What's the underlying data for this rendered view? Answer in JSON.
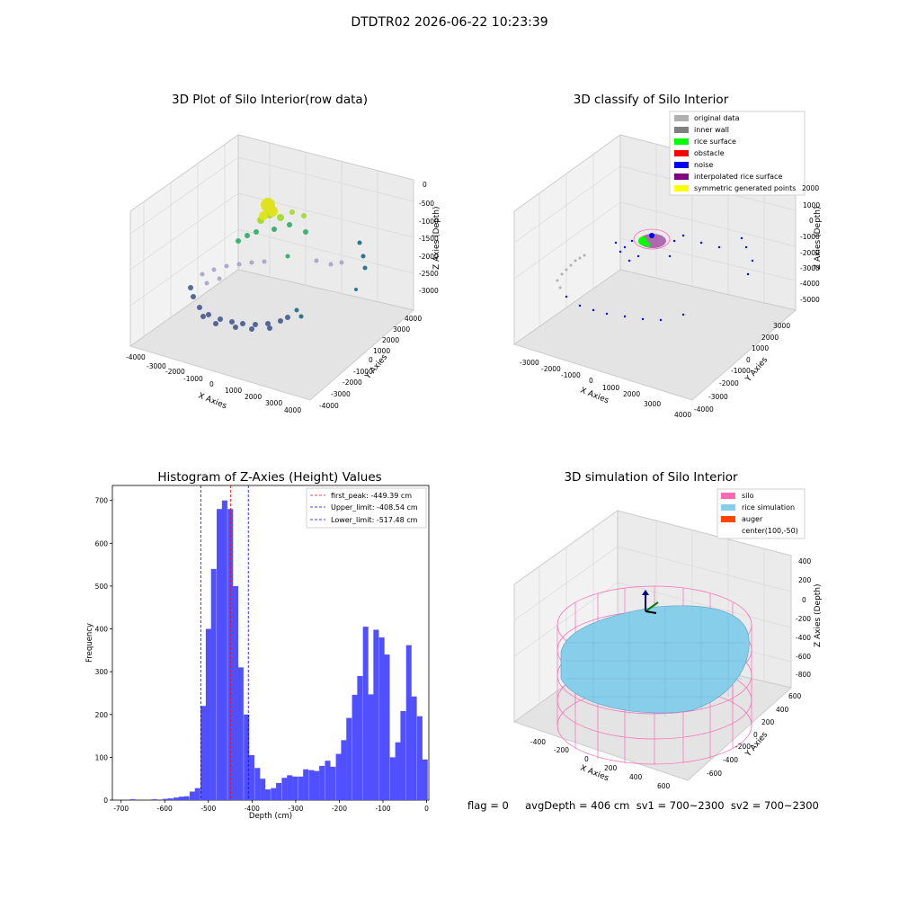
{
  "figure": {
    "suptitle": "DTDTR02 2026-06-22 10:23:39",
    "status_line": "flag = 0     avgDepth = 406 cm  sv1 = 700~2300  sv2 = 700~2300"
  },
  "chart_data": [
    {
      "type": "scatter",
      "projection": "3d",
      "title": "3D Plot of Silo Interior(row data)",
      "xlabel": "X Axies",
      "ylabel": "Y Axies",
      "zlabel": "Z Axies (Depth)",
      "xticks": [
        -4000,
        -3000,
        -2000,
        -1000,
        0,
        1000,
        2000,
        3000,
        4000
      ],
      "yticks": [
        -4000,
        -3000,
        -2000,
        -1000,
        0,
        1000,
        2000,
        3000,
        4000
      ],
      "zticks": [
        0,
        -500,
        -1000,
        -1500,
        -2000,
        -2500,
        -3000
      ],
      "colormap": "viridis"
    },
    {
      "type": "scatter",
      "projection": "3d",
      "title": "3D classify of Silo Interior",
      "xlabel": "X Axies",
      "ylabel": "Y Axies",
      "zlabel": "Z Axies (Depth)",
      "xticks": [
        -3000,
        -2000,
        -1000,
        0,
        1000,
        2000,
        3000,
        4000
      ],
      "yticks": [
        -4000,
        -3000,
        -2000,
        -1000,
        0,
        1000,
        2000,
        3000
      ],
      "zticks": [
        2000,
        1000,
        0,
        -1000,
        -2000,
        -3000,
        -4000,
        -5000
      ],
      "legend": [
        {
          "label": "original data",
          "color": "#b0b0b0"
        },
        {
          "label": "inner wall",
          "color": "#808080"
        },
        {
          "label": "rice surface",
          "color": "#00ff00"
        },
        {
          "label": "obstacle",
          "color": "#ff0000"
        },
        {
          "label": "noise",
          "color": "#0000ff"
        },
        {
          "label": "interpolated rice surface",
          "color": "#800080"
        },
        {
          "label": "symmetric generated points",
          "color": "#ffff00"
        }
      ]
    },
    {
      "type": "bar",
      "title": "Histogram of Z-Axies (Height) Values",
      "xlabel": "Depth (cm)",
      "ylabel": "Frequency",
      "xlim": [
        -720,
        5
      ],
      "ylim": [
        0,
        735
      ],
      "xticks": [
        -700,
        -600,
        -500,
        -400,
        -300,
        -200,
        -100,
        0
      ],
      "yticks": [
        0,
        100,
        200,
        300,
        400,
        500,
        600,
        700
      ],
      "bin_width": 12.4,
      "bar_color": "#5050ff",
      "bins": [
        [
          -680,
          2
        ],
        [
          -630,
          2
        ],
        [
          -605,
          3
        ],
        [
          -593,
          4
        ],
        [
          -580,
          6
        ],
        [
          -568,
          8
        ],
        [
          -556,
          9
        ],
        [
          -543,
          20
        ],
        [
          -531,
          28
        ],
        [
          -518,
          220
        ],
        [
          -506,
          400
        ],
        [
          -494,
          540
        ],
        [
          -481,
          680
        ],
        [
          -469,
          700
        ],
        [
          -456,
          680
        ],
        [
          -444,
          500
        ],
        [
          -432,
          310
        ],
        [
          -419,
          200
        ],
        [
          -407,
          105
        ],
        [
          -394,
          75
        ],
        [
          -382,
          50
        ],
        [
          -370,
          25
        ],
        [
          -357,
          28
        ],
        [
          -345,
          40
        ],
        [
          -332,
          52
        ],
        [
          -320,
          58
        ],
        [
          -308,
          55
        ],
        [
          -295,
          55
        ],
        [
          -283,
          72
        ],
        [
          -270,
          70
        ],
        [
          -258,
          68
        ],
        [
          -246,
          80
        ],
        [
          -233,
          92
        ],
        [
          -221,
          78
        ],
        [
          -208,
          108
        ],
        [
          -196,
          140
        ],
        [
          -184,
          192
        ],
        [
          -171,
          246
        ],
        [
          -159,
          290
        ],
        [
          -146,
          405
        ],
        [
          -134,
          247
        ],
        [
          -122,
          398
        ],
        [
          -109,
          380
        ],
        [
          -97,
          340
        ],
        [
          -84,
          100
        ],
        [
          -72,
          135
        ],
        [
          -60,
          208
        ],
        [
          -47,
          362
        ],
        [
          -35,
          242
        ],
        [
          -22,
          196
        ],
        [
          -10,
          95
        ]
      ],
      "vlines": [
        {
          "label": "first_peak: -449.39 cm",
          "x": -449.39,
          "color": "#ff0000"
        },
        {
          "label": "Upper_limit: -408.54 cm",
          "x": -408.54,
          "color": "#0000ff"
        },
        {
          "label": "Lower_limit: -517.48 cm",
          "x": -517.48,
          "color": "#0000ff"
        }
      ]
    },
    {
      "type": "surface",
      "projection": "3d",
      "title": "3D simulation of Silo Interior",
      "xlabel": "X Axies",
      "ylabel": "Y Axies",
      "zlabel": "Z Axies (Depth)",
      "xticks": [
        -400,
        -200,
        0,
        200,
        400,
        600
      ],
      "yticks": [
        600,
        400,
        200,
        0,
        -200,
        -400,
        -600
      ],
      "zticks": [
        400,
        200,
        0,
        -200,
        -400,
        -600,
        -800
      ],
      "legend": [
        {
          "label": "silo",
          "color": "#ff69b4"
        },
        {
          "label": "rice simulation",
          "color": "#87ceeb"
        },
        {
          "label": "auger",
          "color": "#ff4500"
        },
        {
          "label": "center(100,-50)",
          "color": "none"
        }
      ]
    }
  ]
}
